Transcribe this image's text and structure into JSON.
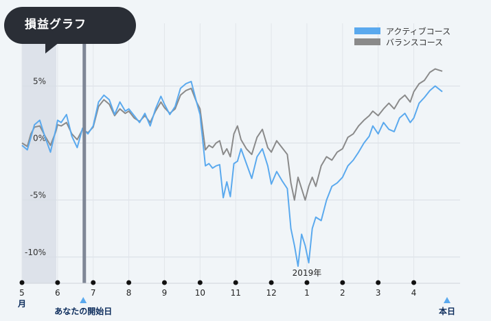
{
  "chart_data": {
    "type": "line",
    "title": "損益グラフ",
    "y_tick_labels": [
      "5%",
      "0%",
      "-5%",
      "-10%"
    ],
    "y_ticks": [
      5,
      0,
      -5,
      -10
    ],
    "ylim": [
      -12.3,
      10.5
    ],
    "x_tick_labels": [
      "5",
      "6",
      "7",
      "8",
      "9",
      "10",
      "11",
      "12",
      "1",
      "2",
      "3",
      "4"
    ],
    "x_tick_unit": "月",
    "year_label": "2019年",
    "start_marker_label": "あなたの開始日",
    "today_marker_label": "本日",
    "grid": true,
    "legend_position": "top-right",
    "series": [
      {
        "name": "アクティブコース",
        "color": "#5aa9ee",
        "x": [
          5.0,
          5.15,
          5.25,
          5.35,
          5.5,
          5.65,
          5.8,
          5.95,
          6.0,
          6.1,
          6.25,
          6.4,
          6.55,
          6.7,
          6.85,
          7.0,
          7.15,
          7.3,
          7.45,
          7.6,
          7.75,
          7.9,
          8.0,
          8.15,
          8.3,
          8.45,
          8.6,
          8.75,
          8.9,
          9.0,
          9.15,
          9.3,
          9.45,
          9.6,
          9.75,
          9.9,
          10.0,
          10.15,
          10.25,
          10.35,
          10.45,
          10.55,
          10.65,
          10.75,
          10.85,
          10.95,
          11.05,
          11.15,
          11.3,
          11.45,
          11.6,
          11.75,
          11.9,
          12.0,
          12.15,
          12.3,
          12.45,
          12.55,
          12.65,
          12.75,
          12.85,
          12.95,
          13.05,
          13.15,
          13.25,
          13.4,
          13.55,
          13.7,
          13.85,
          14.0,
          14.15,
          14.3,
          14.45,
          14.6,
          14.75,
          14.85,
          15.0,
          15.15,
          15.3,
          15.45,
          15.6,
          15.75,
          15.9,
          16.0,
          16.15,
          16.3,
          16.45,
          16.6,
          16.8
        ],
        "values": [
          -0.2,
          -0.6,
          0.5,
          1.6,
          2.0,
          0.5,
          -0.8,
          1.2,
          2.0,
          1.8,
          2.5,
          0.6,
          -0.4,
          1.3,
          0.8,
          1.5,
          3.6,
          4.2,
          3.8,
          2.5,
          3.6,
          2.8,
          3.0,
          2.4,
          1.8,
          2.6,
          1.5,
          3.0,
          4.1,
          3.4,
          2.5,
          3.2,
          4.8,
          5.2,
          5.4,
          3.6,
          2.5,
          -2.0,
          -1.8,
          -2.2,
          -2.0,
          -1.9,
          -4.8,
          -3.4,
          -4.7,
          -1.8,
          -1.6,
          -0.5,
          -1.8,
          -3.1,
          -1.2,
          -0.5,
          -2.0,
          -3.6,
          -2.5,
          -3.3,
          -4.0,
          -7.5,
          -9.0,
          -10.8,
          -8.0,
          -9.0,
          -10.5,
          -7.5,
          -6.5,
          -6.8,
          -5.0,
          -3.8,
          -3.5,
          -3.0,
          -2.0,
          -1.5,
          -0.8,
          0.0,
          0.6,
          1.5,
          0.8,
          1.8,
          1.2,
          1.0,
          2.2,
          2.6,
          1.8,
          2.2,
          3.5,
          4.0,
          4.6,
          5.0,
          4.5
        ]
      },
      {
        "name": "バランスコース",
        "color": "#8a8a8a",
        "x": [
          5.0,
          5.15,
          5.25,
          5.35,
          5.5,
          5.65,
          5.8,
          5.95,
          6.0,
          6.1,
          6.25,
          6.4,
          6.55,
          6.7,
          6.85,
          7.0,
          7.15,
          7.3,
          7.45,
          7.6,
          7.75,
          7.9,
          8.0,
          8.15,
          8.3,
          8.45,
          8.6,
          8.75,
          8.9,
          9.0,
          9.15,
          9.3,
          9.45,
          9.6,
          9.75,
          9.9,
          10.0,
          10.15,
          10.25,
          10.35,
          10.45,
          10.55,
          10.65,
          10.75,
          10.85,
          10.95,
          11.05,
          11.15,
          11.3,
          11.45,
          11.6,
          11.75,
          11.9,
          12.0,
          12.15,
          12.3,
          12.45,
          12.55,
          12.65,
          12.75,
          12.85,
          12.95,
          13.05,
          13.15,
          13.25,
          13.4,
          13.55,
          13.7,
          13.85,
          14.0,
          14.15,
          14.3,
          14.45,
          14.6,
          14.75,
          14.85,
          15.0,
          15.15,
          15.3,
          15.45,
          15.6,
          15.75,
          15.9,
          16.0,
          16.15,
          16.3,
          16.45,
          16.6,
          16.8
        ],
        "values": [
          0.0,
          -0.3,
          0.8,
          1.4,
          1.5,
          0.6,
          -0.2,
          1.0,
          1.6,
          1.5,
          1.8,
          0.8,
          0.3,
          1.2,
          0.9,
          1.4,
          3.2,
          3.8,
          3.4,
          2.4,
          3.0,
          2.6,
          2.8,
          2.2,
          1.9,
          2.4,
          1.8,
          2.8,
          3.6,
          3.1,
          2.6,
          3.0,
          4.2,
          4.6,
          4.8,
          3.6,
          3.0,
          -0.6,
          -0.2,
          -0.4,
          0.0,
          0.2,
          -1.0,
          -0.5,
          -1.2,
          0.8,
          1.5,
          0.3,
          -0.5,
          -1.0,
          0.5,
          1.2,
          -0.4,
          -0.8,
          0.2,
          -0.4,
          -1.0,
          -3.5,
          -5.0,
          -3.0,
          -4.0,
          -5.0,
          -3.8,
          -3.0,
          -3.8,
          -2.0,
          -1.2,
          -1.5,
          -0.8,
          -0.5,
          0.5,
          0.8,
          1.5,
          2.0,
          2.4,
          2.8,
          2.4,
          3.0,
          3.5,
          3.0,
          3.8,
          4.2,
          3.6,
          4.5,
          5.2,
          5.5,
          6.2,
          6.5,
          6.3
        ]
      }
    ]
  }
}
